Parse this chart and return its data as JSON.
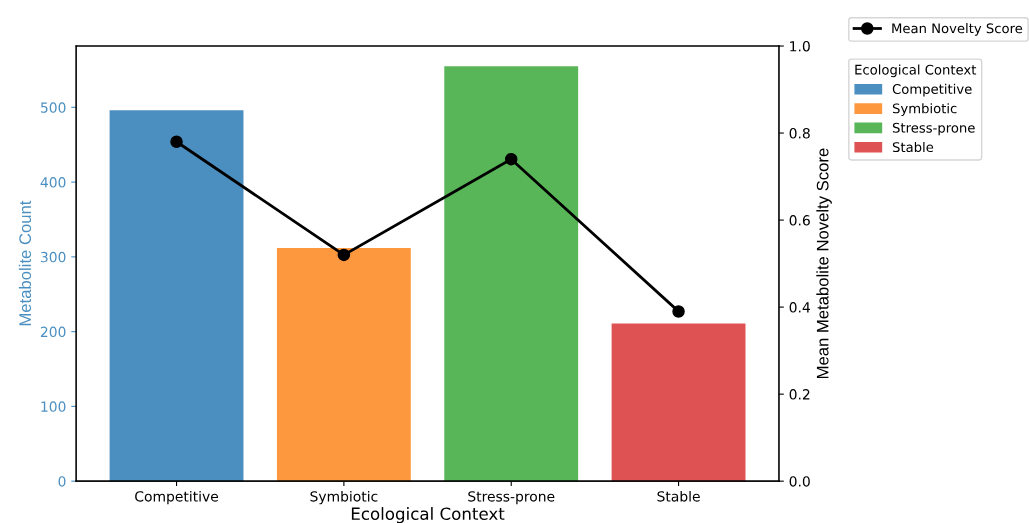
{
  "chart_data": {
    "type": "bar",
    "categories": [
      "Competitive",
      "Symbiotic",
      "Stress-prone",
      "Stable"
    ],
    "xlabel": "Ecological Context",
    "ylabel": "Metabolite Count",
    "y2label": "Mean Metabolite Novelty Score",
    "legend_title": "Ecological Context",
    "legend": "top right",
    "series": [
      {
        "colors": [
          "#4b8fc1",
          "#fe983f",
          "#58b658",
          "#de5254"
        ],
        "values": [
          496,
          312,
          555,
          211
        ]
      },
      {
        "type": "line",
        "name": "Mean Novelty Score",
        "color": "#000000",
        "axis": "y2",
        "marker": "circle",
        "line_style": "solid",
        "values": [
          0.78,
          0.52,
          0.74,
          0.39
        ]
      }
    ],
    "ylim": [
      0,
      582
    ],
    "yticks": [
      0,
      100,
      200,
      300,
      400,
      500
    ],
    "y2lim": [
      0,
      1.0
    ],
    "y2ticks": [
      {
        "value": 0,
        "label": "0.0"
      },
      {
        "value": 0.2,
        "label": "0.2"
      },
      {
        "value": 0.4,
        "label": "0.4"
      },
      {
        "value": 0.6,
        "label": "0.6"
      },
      {
        "value": 0.8,
        "label": "0.8"
      },
      {
        "value": 1.0,
        "label": "1.0"
      }
    ]
  }
}
